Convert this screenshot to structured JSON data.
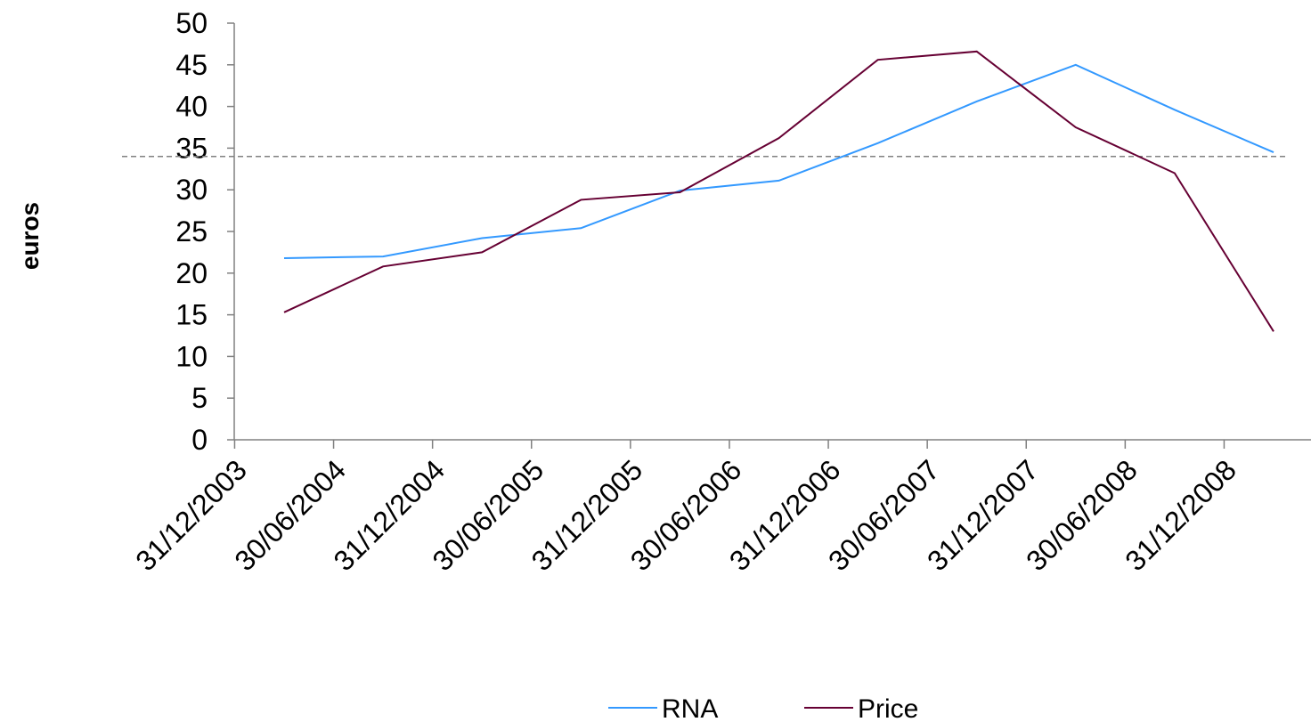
{
  "chart_data": {
    "type": "line",
    "title": "",
    "xlabel": "",
    "ylabel": "euros",
    "ylim": [
      0,
      50
    ],
    "yticks": [
      0,
      5,
      10,
      15,
      20,
      25,
      30,
      35,
      40,
      45,
      50
    ],
    "categories": [
      "31/12/2003",
      "30/06/2004",
      "31/12/2004",
      "30/06/2005",
      "31/12/2005",
      "30/06/2006",
      "31/12/2006",
      "30/06/2007",
      "31/12/2007",
      "30/06/2008",
      "31/12/2008"
    ],
    "series": [
      {
        "name": "RNA",
        "color": "#3399ff",
        "values": [
          21.8,
          22.0,
          24.2,
          25.4,
          29.9,
          31.1,
          35.6,
          40.6,
          45.0,
          39.6,
          34.5
        ]
      },
      {
        "name": "Price",
        "color": "#660033",
        "values": [
          15.3,
          20.8,
          22.5,
          28.8,
          29.7,
          36.2,
          45.6,
          46.6,
          37.5,
          32.0,
          13.0
        ]
      }
    ],
    "reference_line": {
      "value": 34.0,
      "style": "dashed",
      "color": "#808080"
    },
    "grid": false,
    "legend_position": "bottom"
  }
}
